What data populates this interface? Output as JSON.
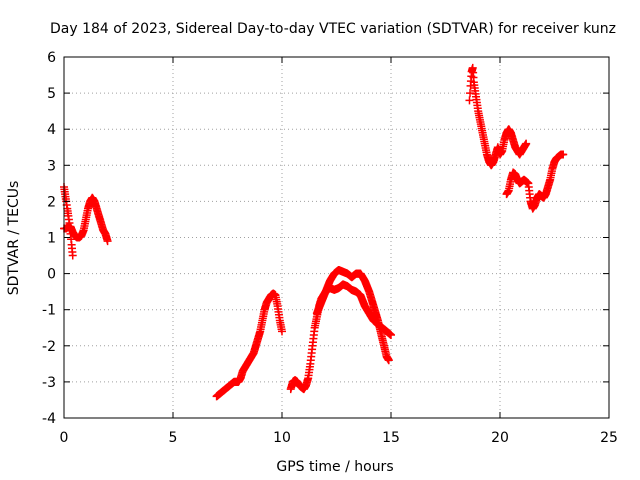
{
  "chart_data": {
    "type": "scatter",
    "title": "Day 184 of 2023, Sidereal Day-to-day VTEC variation (SDTVAR) for receiver kunz",
    "xlabel": "GPS time / hours",
    "ylabel": "SDTVAR / TECUs",
    "xlim": [
      0,
      25
    ],
    "ylim": [
      -4,
      6
    ],
    "xticks": [
      0,
      5,
      10,
      15,
      20,
      25
    ],
    "yticks": [
      -4,
      -3,
      -2,
      -1,
      0,
      1,
      2,
      3,
      4,
      5,
      6
    ],
    "grid": true,
    "marker": "+",
    "colors": {
      "series": "#ff0000",
      "axes": "#000000",
      "grid": "#a0a0a0"
    },
    "series": [
      {
        "segments": [
          [
            [
              0.0,
              2.4
            ],
            [
              0.05,
              2.2
            ],
            [
              0.1,
              2.0
            ],
            [
              0.15,
              1.8
            ],
            [
              0.2,
              1.6
            ],
            [
              0.25,
              1.4
            ],
            [
              0.3,
              1.1
            ],
            [
              0.35,
              0.8
            ],
            [
              0.4,
              0.5
            ]
          ],
          [
            [
              0.0,
              1.25
            ],
            [
              0.1,
              1.25
            ],
            [
              0.2,
              1.3
            ],
            [
              0.3,
              1.3
            ],
            [
              0.4,
              1.15
            ],
            [
              0.5,
              1.05
            ],
            [
              0.6,
              1.0
            ],
            [
              0.7,
              1.0
            ],
            [
              0.8,
              1.05
            ],
            [
              0.9,
              1.2
            ],
            [
              1.0,
              1.5
            ],
            [
              1.1,
              1.8
            ],
            [
              1.2,
              2.0
            ],
            [
              1.3,
              2.1
            ],
            [
              1.4,
              2.0
            ],
            [
              1.5,
              1.8
            ],
            [
              1.6,
              1.6
            ],
            [
              1.7,
              1.4
            ],
            [
              1.8,
              1.2
            ],
            [
              1.9,
              1.1
            ],
            [
              2.0,
              0.9
            ]
          ],
          [
            [
              7.0,
              -3.4
            ],
            [
              7.2,
              -3.3
            ],
            [
              7.4,
              -3.2
            ],
            [
              7.6,
              -3.1
            ],
            [
              7.8,
              -3.0
            ],
            [
              8.0,
              -3.0
            ],
            [
              8.1,
              -2.9
            ],
            [
              8.2,
              -2.7
            ],
            [
              8.3,
              -2.6
            ],
            [
              8.5,
              -2.4
            ],
            [
              8.7,
              -2.2
            ],
            [
              8.9,
              -1.8
            ],
            [
              9.0,
              -1.6
            ],
            [
              9.1,
              -1.3
            ],
            [
              9.2,
              -1.0
            ],
            [
              9.3,
              -0.8
            ],
            [
              9.4,
              -0.7
            ],
            [
              9.5,
              -0.6
            ],
            [
              9.6,
              -0.55
            ],
            [
              9.7,
              -0.6
            ],
            [
              9.8,
              -0.9
            ],
            [
              9.9,
              -1.3
            ],
            [
              10.0,
              -1.6
            ]
          ],
          [
            [
              10.4,
              -3.2
            ],
            [
              10.5,
              -3.0
            ],
            [
              10.6,
              -2.95
            ],
            [
              10.7,
              -3.0
            ],
            [
              10.8,
              -3.1
            ],
            [
              10.9,
              -3.15
            ],
            [
              11.0,
              -3.2
            ],
            [
              11.1,
              -3.1
            ],
            [
              11.2,
              -2.9
            ],
            [
              11.3,
              -2.5
            ],
            [
              11.4,
              -2.0
            ],
            [
              11.5,
              -1.5
            ],
            [
              11.6,
              -1.2
            ],
            [
              11.7,
              -0.9
            ],
            [
              11.8,
              -0.7
            ],
            [
              12.0,
              -0.5
            ],
            [
              12.2,
              -0.4
            ],
            [
              12.4,
              -0.45
            ],
            [
              12.6,
              -0.4
            ],
            [
              12.8,
              -0.3
            ],
            [
              13.0,
              -0.35
            ],
            [
              13.2,
              -0.45
            ],
            [
              13.4,
              -0.5
            ],
            [
              13.6,
              -0.6
            ],
            [
              13.8,
              -0.9
            ],
            [
              14.0,
              -1.1
            ],
            [
              14.2,
              -1.3
            ],
            [
              14.4,
              -1.4
            ],
            [
              14.6,
              -1.5
            ],
            [
              14.8,
              -1.6
            ],
            [
              15.0,
              -1.7
            ]
          ],
          [
            [
              11.6,
              -1.1
            ],
            [
              11.8,
              -0.8
            ],
            [
              12.0,
              -0.5
            ],
            [
              12.2,
              -0.2
            ],
            [
              12.4,
              0.0
            ],
            [
              12.6,
              0.1
            ],
            [
              12.8,
              0.05
            ],
            [
              13.0,
              0.0
            ],
            [
              13.2,
              -0.1
            ],
            [
              13.4,
              0.0
            ],
            [
              13.6,
              0.0
            ],
            [
              13.8,
              -0.2
            ],
            [
              14.0,
              -0.5
            ],
            [
              14.2,
              -0.9
            ],
            [
              14.4,
              -1.3
            ],
            [
              14.6,
              -1.8
            ],
            [
              14.8,
              -2.3
            ],
            [
              14.9,
              -2.4
            ]
          ],
          [
            [
              18.6,
              4.8
            ],
            [
              18.65,
              5.2
            ],
            [
              18.7,
              5.6
            ],
            [
              18.75,
              5.7
            ],
            [
              18.8,
              5.3
            ],
            [
              18.9,
              4.9
            ],
            [
              19.0,
              4.5
            ],
            [
              19.1,
              4.2
            ],
            [
              19.2,
              3.9
            ],
            [
              19.3,
              3.6
            ],
            [
              19.4,
              3.3
            ],
            [
              19.5,
              3.1
            ],
            [
              19.6,
              3.0
            ],
            [
              19.7,
              3.1
            ],
            [
              19.8,
              3.3
            ],
            [
              19.9,
              3.5
            ],
            [
              20.0,
              3.3
            ],
            [
              20.1,
              3.4
            ],
            [
              20.2,
              3.7
            ],
            [
              20.3,
              3.9
            ],
            [
              20.4,
              4.0
            ],
            [
              20.5,
              3.9
            ],
            [
              20.6,
              3.7
            ],
            [
              20.7,
              3.5
            ],
            [
              20.8,
              3.4
            ],
            [
              20.9,
              3.3
            ],
            [
              21.0,
              3.4
            ],
            [
              21.1,
              3.5
            ],
            [
              21.2,
              3.6
            ]
          ],
          [
            [
              20.3,
              2.2
            ],
            [
              20.4,
              2.3
            ],
            [
              20.5,
              2.6
            ],
            [
              20.6,
              2.8
            ],
            [
              20.7,
              2.75
            ],
            [
              20.8,
              2.6
            ],
            [
              20.9,
              2.5
            ],
            [
              21.0,
              2.55
            ],
            [
              21.1,
              2.6
            ],
            [
              21.2,
              2.55
            ],
            [
              21.3,
              2.5
            ],
            [
              21.4,
              2.0
            ],
            [
              21.5,
              1.8
            ],
            [
              21.6,
              1.9
            ],
            [
              21.7,
              2.1
            ],
            [
              21.8,
              2.2
            ],
            [
              21.9,
              2.15
            ],
            [
              22.0,
              2.1
            ],
            [
              22.1,
              2.2
            ],
            [
              22.2,
              2.4
            ],
            [
              22.3,
              2.6
            ],
            [
              22.4,
              2.9
            ],
            [
              22.5,
              3.1
            ],
            [
              22.6,
              3.2
            ],
            [
              22.7,
              3.25
            ],
            [
              22.8,
              3.3
            ],
            [
              22.9,
              3.3
            ]
          ]
        ]
      }
    ]
  }
}
